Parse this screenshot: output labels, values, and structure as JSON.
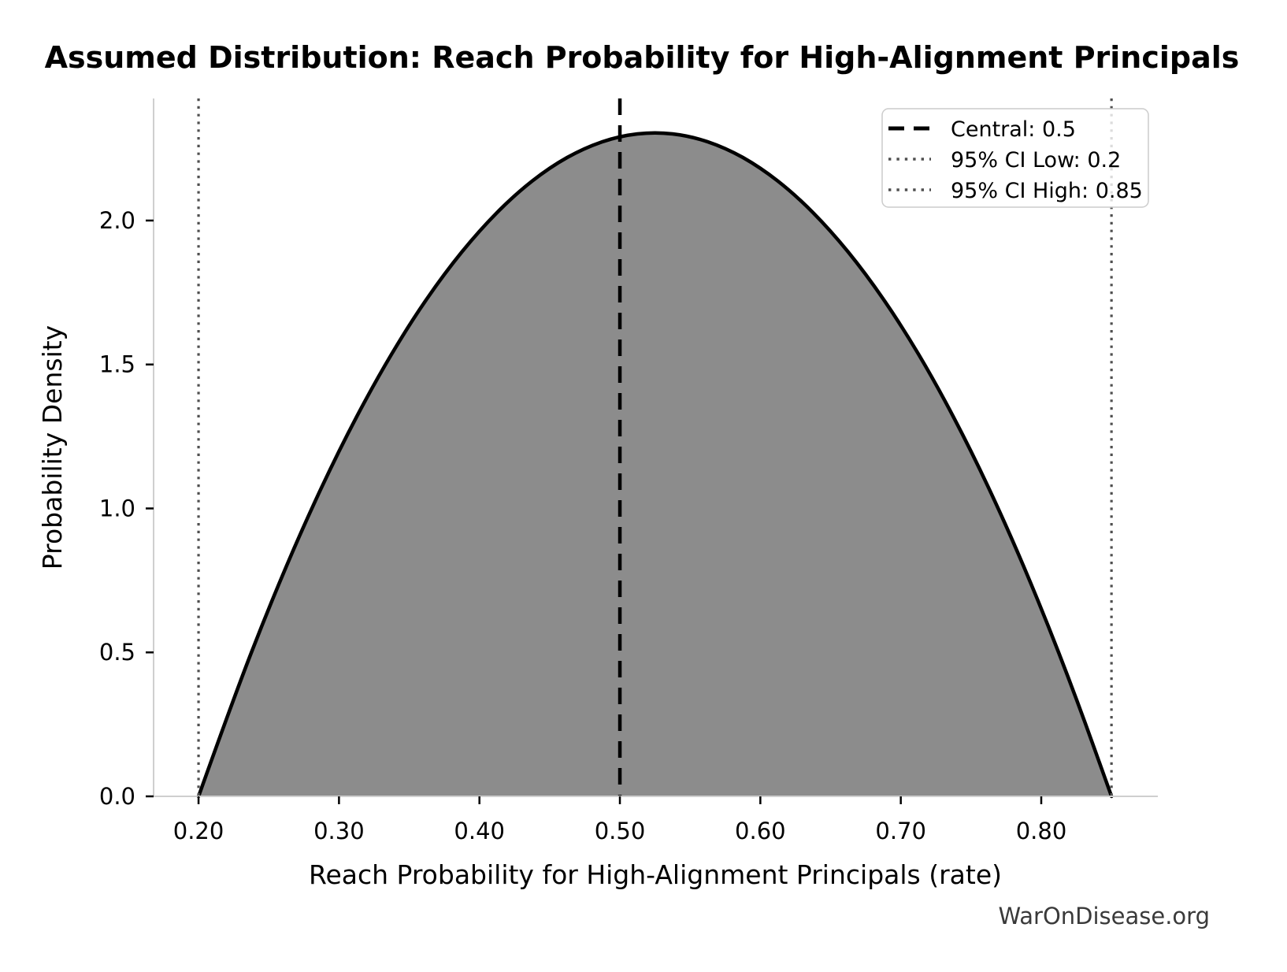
{
  "chart": {
    "title": "Assumed Distribution: Reach Probability for High-Alignment Principals",
    "x_axis": {
      "label": "Reach Probability for High-Alignment Principals (rate)",
      "ticks": [
        {
          "value": 0.2,
          "label": "0.20"
        },
        {
          "value": 0.3,
          "label": "0.30"
        },
        {
          "value": 0.4,
          "label": "0.40"
        },
        {
          "value": 0.5,
          "label": "0.50"
        },
        {
          "value": 0.6,
          "label": "0.60"
        },
        {
          "value": 0.7,
          "label": "0.70"
        },
        {
          "value": 0.8,
          "label": "0.80"
        }
      ]
    },
    "y_axis": {
      "label": "Probability Density",
      "ticks": [
        {
          "value": 0.0,
          "label": "0.0"
        },
        {
          "value": 0.5,
          "label": "0.5"
        },
        {
          "value": 1.0,
          "label": "1.0"
        },
        {
          "value": 1.5,
          "label": "1.5"
        },
        {
          "value": 2.0,
          "label": "2.0"
        }
      ]
    },
    "watermark": "WarOnDisease.org",
    "colors": {
      "fill": "#8c8c8c",
      "curve": "#000000",
      "central_line": "#000000",
      "ci_line": "#4f4f4f",
      "spine": "#cfcfcf",
      "tick": "#000000",
      "legend_border": "#cccccc",
      "legend_background": "rgba(255,255,255,0.8)"
    }
  },
  "chart_data": {
    "type": "area",
    "title": "Assumed Distribution: Reach Probability for High-Alignment Principals",
    "xlabel": "Reach Probability for High-Alignment Principals (rate)",
    "ylabel": "Probability Density",
    "xlim": [
      0.168,
      0.883
    ],
    "ylim": [
      0,
      2.424
    ],
    "grid": false,
    "legend_position": "upper right",
    "distribution": {
      "central": 0.5,
      "ci95_low": 0.2,
      "ci95_high": 0.85,
      "support": [
        0.2,
        0.85
      ],
      "peak_x": 0.525,
      "peak_density": 2.308
    },
    "series": [
      {
        "name": "density",
        "x": [
          0.2,
          0.225,
          0.25,
          0.275,
          0.3,
          0.325,
          0.35,
          0.375,
          0.4,
          0.425,
          0.45,
          0.475,
          0.5,
          0.525,
          0.55,
          0.575,
          0.6,
          0.625,
          0.65,
          0.675,
          0.7,
          0.725,
          0.75,
          0.775,
          0.8,
          0.825,
          0.85
        ],
        "y": [
          0,
          0.341,
          0.655,
          0.942,
          1.202,
          1.434,
          1.639,
          1.816,
          1.966,
          2.089,
          2.185,
          2.253,
          2.294,
          2.308,
          2.294,
          2.253,
          2.185,
          2.089,
          1.966,
          1.816,
          1.639,
          1.434,
          1.202,
          0.942,
          0.655,
          0.341,
          0
        ]
      }
    ],
    "vlines": [
      {
        "x": 0.5,
        "style": "dashed",
        "color": "#000000",
        "label": "Central: 0.5"
      },
      {
        "x": 0.2,
        "style": "dotted",
        "color": "#4f4f4f",
        "label": "95% CI Low: 0.2"
      },
      {
        "x": 0.85,
        "style": "dotted",
        "color": "#4f4f4f",
        "label": "95% CI High: 0.85"
      }
    ]
  }
}
